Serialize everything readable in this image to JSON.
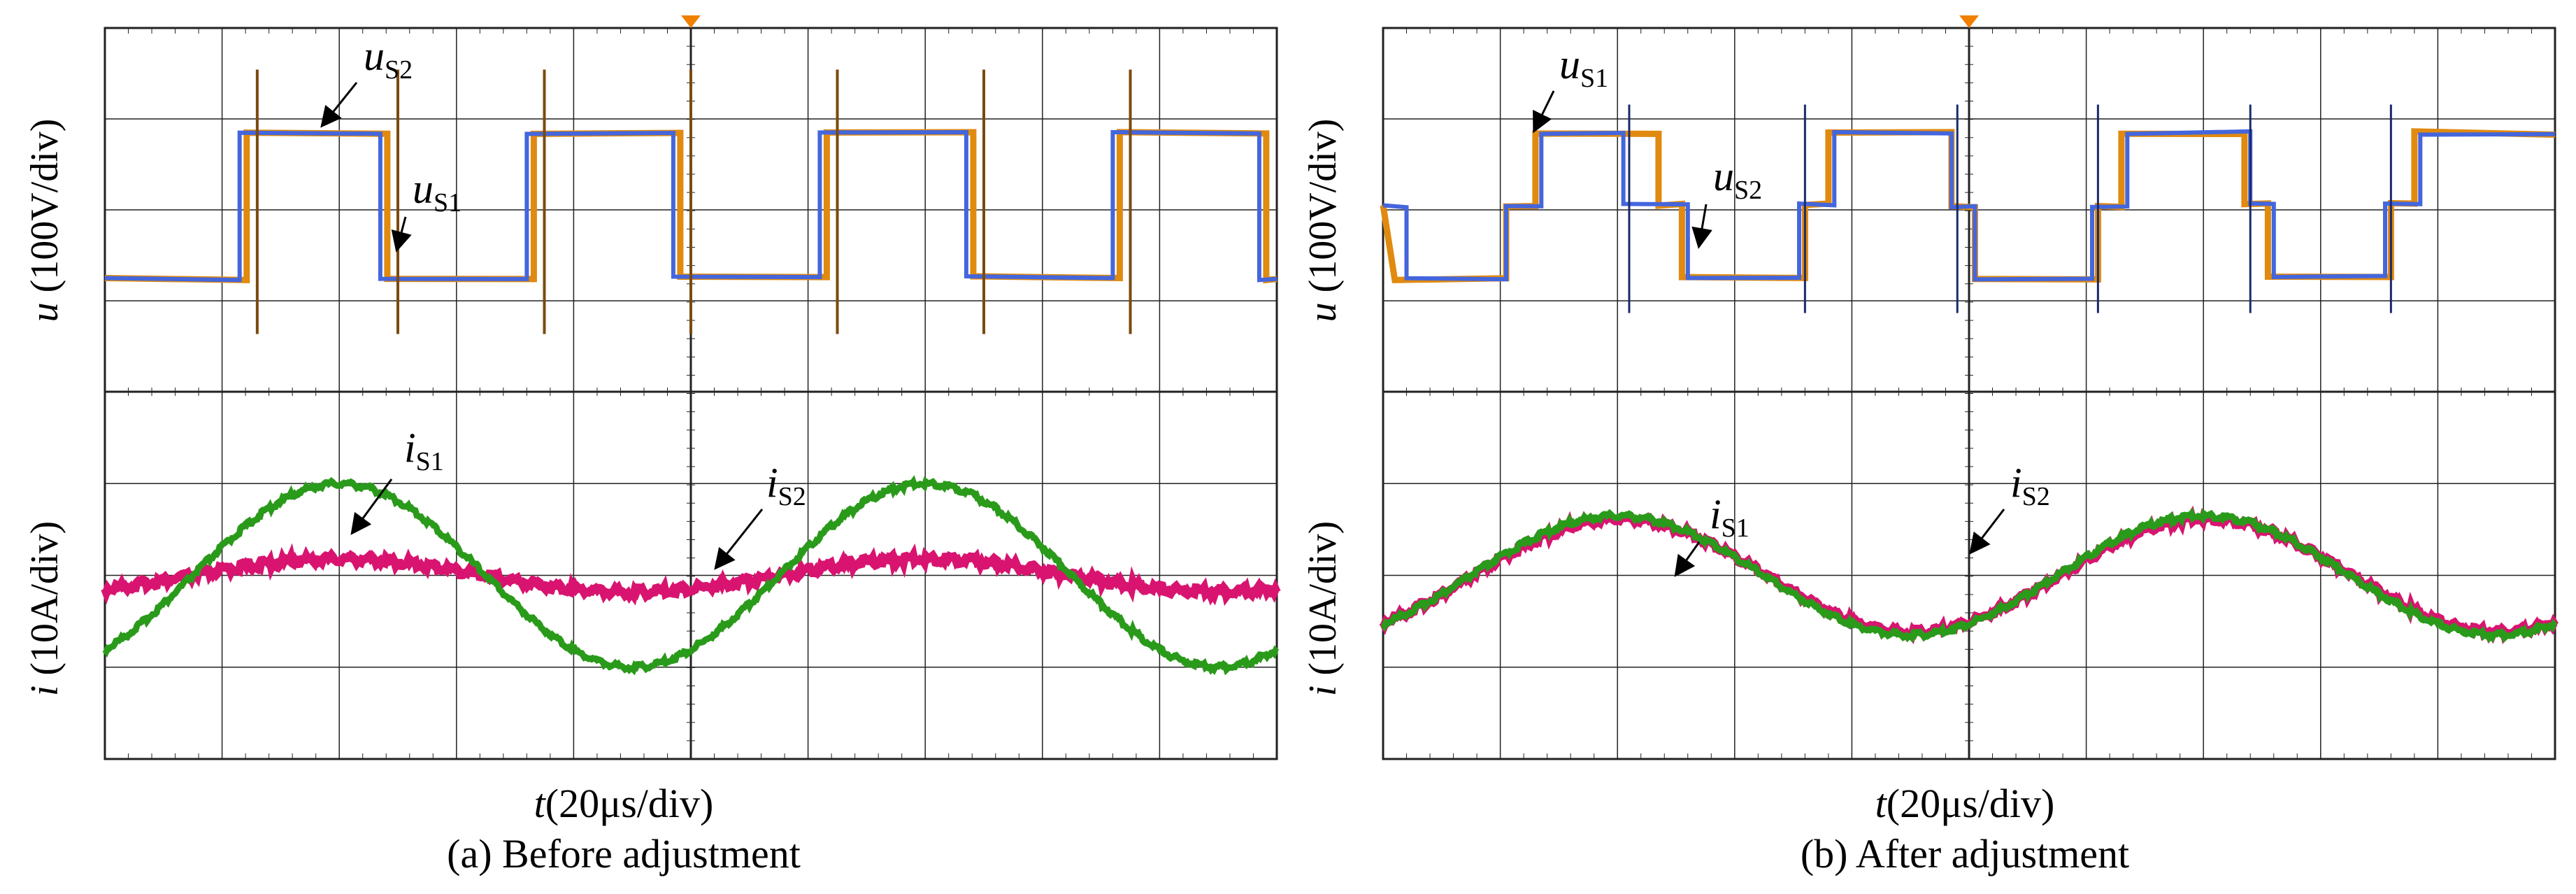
{
  "figure": {
    "panels": [
      {
        "caption": "(a) Before adjustment",
        "xlabel": "t(20μs/div)",
        "ylabel_top": "u (100V/div)",
        "ylabel_bottom": "i (10A/div)",
        "labels": {
          "u_upper": {
            "main": "u",
            "sub": "S2"
          },
          "u_lower": {
            "main": "u",
            "sub": "S1"
          },
          "i_left": {
            "main": "i",
            "sub": "S1"
          },
          "i_right": {
            "main": "i",
            "sub": "S2"
          }
        }
      },
      {
        "caption": "(b) After adjustment",
        "xlabel": "t(20μs/div)",
        "ylabel_top": "u (100V/div)",
        "ylabel_bottom": "i (10A/div)",
        "labels": {
          "u_upper": {
            "main": "u",
            "sub": "S1"
          },
          "u_lower": {
            "main": "u",
            "sub": "S2"
          },
          "i_left": {
            "main": "i",
            "sub": "S1"
          },
          "i_right": {
            "main": "i",
            "sub": "S2"
          }
        }
      }
    ],
    "colors": {
      "u_blue": "#4466dd",
      "u_orange": "#e08a10",
      "i_green": "#2a9a1a",
      "i_magenta": "#d81470",
      "grid": "#222222",
      "arrow": "#000000",
      "marker": "#f08000"
    }
  },
  "chart_data": [
    {
      "type": "line",
      "panel": "a",
      "x_divisions": 10,
      "x_unit": "20μs/div",
      "top_plot": {
        "ylabel": "u (100V/div)",
        "y_divisions": 4,
        "series": [
          {
            "name": "uS2",
            "color": "#4466dd",
            "shape": "square",
            "high_div": 1.6,
            "low_div": 0.0,
            "period_div": 5.0,
            "rise_div": 1.2
          },
          {
            "name": "uS1",
            "color": "#e08a10",
            "shape": "square",
            "high_div": 1.6,
            "low_div": 0.0,
            "period_div": 5.0,
            "rise_div": 1.25
          }
        ]
      },
      "bottom_plot": {
        "ylabel": "i (10A/div)",
        "y_divisions": 4,
        "series": [
          {
            "name": "iS1",
            "color": "#2a9a1a",
            "shape": "sine",
            "amplitude_div": 1.0,
            "period_div": 5.0,
            "peak_at_div": 2.0
          },
          {
            "name": "iS2",
            "color": "#d81470",
            "shape": "sine",
            "amplitude_div": 0.25,
            "period_div": 5.0,
            "peak_at_div": 2.0
          }
        ]
      }
    },
    {
      "type": "line",
      "panel": "b",
      "x_divisions": 10,
      "x_unit": "20μs/div",
      "top_plot": {
        "ylabel": "u (100V/div)",
        "y_divisions": 4,
        "series": [
          {
            "name": "uS1",
            "color": "#e08a10",
            "shape": "stepped",
            "levels_div": [
              1.6,
              0.8,
              0.0,
              0.8,
              1.6
            ]
          },
          {
            "name": "uS2",
            "color": "#4466dd",
            "shape": "stepped",
            "levels_div": [
              1.6,
              0.8,
              0.0,
              0.8,
              1.6
            ]
          }
        ]
      },
      "bottom_plot": {
        "ylabel": "i (10A/div)",
        "y_divisions": 4,
        "series": [
          {
            "name": "iS1",
            "color": "#2a9a1a",
            "shape": "sine",
            "amplitude_div": 0.65,
            "period_div": 5.0,
            "peak_at_div": 2.0
          },
          {
            "name": "iS2",
            "color": "#d81470",
            "shape": "sine",
            "amplitude_div": 0.65,
            "period_div": 5.0,
            "peak_at_div": 2.0
          }
        ]
      }
    }
  ]
}
